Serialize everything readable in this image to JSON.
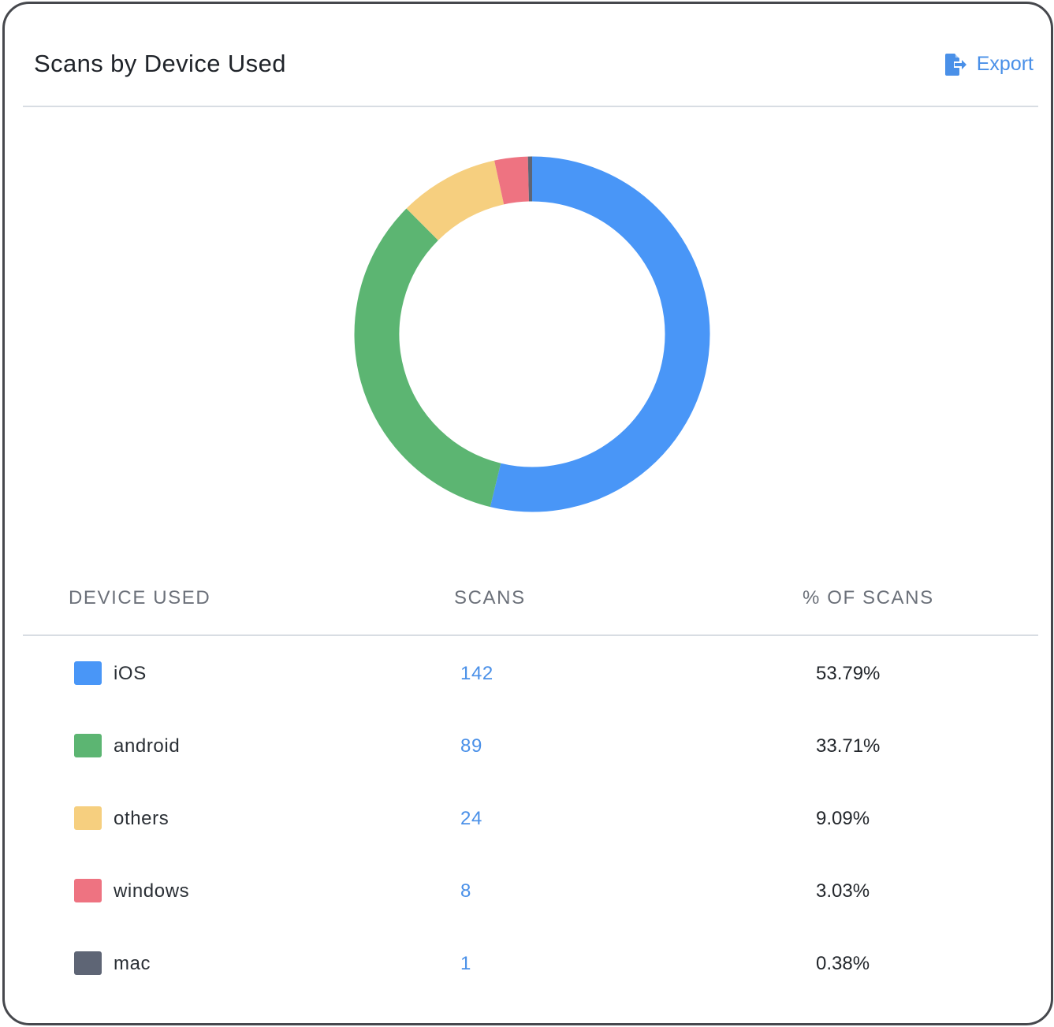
{
  "header": {
    "title": "Scans by Device Used",
    "export_label": "Export",
    "export_icon": "file-export-icon"
  },
  "colors": {
    "accent": "#4a90e8",
    "ios": "#4996f7",
    "android": "#5cb572",
    "others": "#f6cf7f",
    "windows": "#ee7381",
    "mac": "#5e6575"
  },
  "table": {
    "headers": {
      "device": "DEVICE USED",
      "scans": "SCANS",
      "pct": "% OF SCANS"
    },
    "rows": [
      {
        "device": "iOS",
        "scans": "142",
        "pct": "53.79%",
        "color": "#4996f7"
      },
      {
        "device": "android",
        "scans": "89",
        "pct": "33.71%",
        "color": "#5cb572"
      },
      {
        "device": "others",
        "scans": "24",
        "pct": "9.09%",
        "color": "#f6cf7f"
      },
      {
        "device": "windows",
        "scans": "8",
        "pct": "3.03%",
        "color": "#ee7381"
      },
      {
        "device": "mac",
        "scans": "1",
        "pct": "0.38%",
        "color": "#5e6575"
      }
    ]
  },
  "chart_data": {
    "type": "pie",
    "title": "Scans by Device Used",
    "donut": true,
    "start_angle": "top",
    "direction": "clockwise",
    "categories": [
      "iOS",
      "android",
      "others",
      "windows",
      "mac"
    ],
    "values": [
      142,
      89,
      24,
      8,
      1
    ],
    "colors": [
      "#4996f7",
      "#5cb572",
      "#f6cf7f",
      "#ee7381",
      "#5e6575"
    ],
    "legend": "table below chart"
  }
}
